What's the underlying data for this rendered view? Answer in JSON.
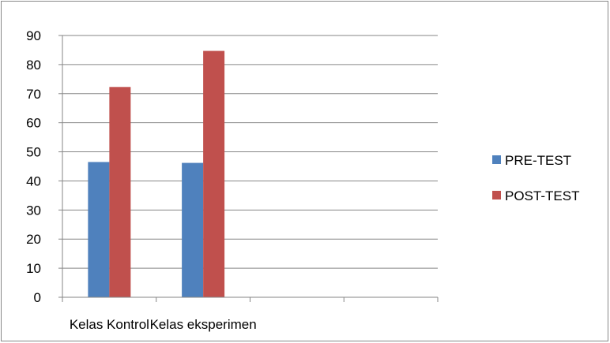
{
  "chart_data": {
    "type": "bar",
    "categories": [
      "Kelas Kontrol",
      "Kelas eksperimen",
      "",
      ""
    ],
    "series": [
      {
        "name": "PRE-TEST",
        "color": "#4F81BD",
        "values": [
          46.5,
          46.2,
          null,
          null
        ]
      },
      {
        "name": "POST-TEST",
        "color": "#C0504D",
        "values": [
          72.3,
          84.7,
          null,
          null
        ]
      }
    ],
    "ylim": [
      0,
      90
    ],
    "yticks": [
      0,
      10,
      20,
      30,
      40,
      50,
      60,
      70,
      80,
      90
    ],
    "grid": true,
    "legend_position": "right"
  }
}
